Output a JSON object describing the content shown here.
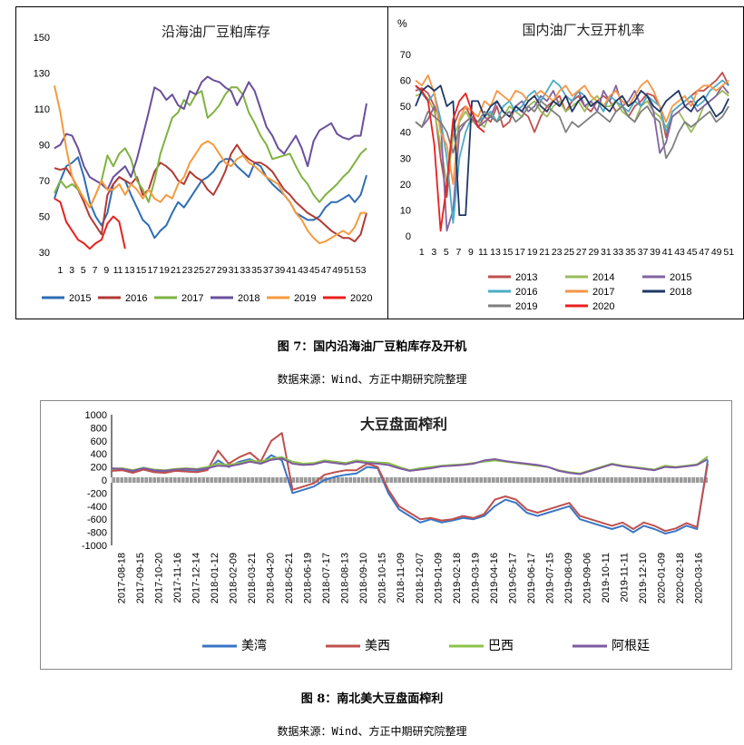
{
  "figure7": {
    "caption": "图 7：国内沿海油厂豆粕库存及开机",
    "source": "数据来源：Wind、方正中期研究院整理"
  },
  "figure8": {
    "caption": "图 8：南北美大豆盘面榨利",
    "source": "数据来源：Wind、方正中期研究院整理"
  },
  "colors": {
    "2015": "#2e6db4",
    "2016": "#b23a34",
    "2017": "#7fb241",
    "2018": "#6a4f9c",
    "2019": "#f59a3d",
    "2020": "#e8201e",
    "c2013": "#c0504d",
    "c2014": "#9bbb59",
    "c2015": "#8064a2",
    "c2016": "#4bacc6",
    "c2017": "#f79646",
    "c2018": "#1f3864",
    "c2019": "#7f7f7f",
    "c2020": "#e8201e",
    "us": "#3a75c4",
    "mx": "#c0504d",
    "br": "#8bc34a",
    "ar": "#7e5aa0"
  },
  "chart_data": [
    {
      "type": "line",
      "title": "沿海油厂豆粕库存",
      "x_ticks": [
        "1",
        "3",
        "5",
        "7",
        "9",
        "11",
        "13",
        "15",
        "17",
        "19",
        "21",
        "23",
        "25",
        "27",
        "29",
        "31",
        "33",
        "35",
        "37",
        "39",
        "41",
        "43",
        "45",
        "47",
        "49",
        "51",
        "53"
      ],
      "ylim": [
        30,
        150
      ],
      "y_ticks": [
        30,
        50,
        70,
        90,
        110,
        130,
        150
      ],
      "grid": false,
      "legend": "bottom",
      "series": [
        {
          "name": "2015",
          "color_key": "2015",
          "values": [
            60,
            70,
            78,
            80,
            83,
            72,
            58,
            50,
            45,
            52,
            68,
            72,
            70,
            62,
            55,
            48,
            45,
            38,
            42,
            45,
            52,
            58,
            55,
            60,
            65,
            70,
            72,
            75,
            80,
            82,
            82,
            78,
            75,
            72,
            80,
            78,
            72,
            68,
            65,
            62,
            58,
            52,
            50,
            48,
            48,
            50,
            55,
            58,
            58,
            60,
            62,
            58,
            62,
            73
          ]
        },
        {
          "name": "2016",
          "color_key": "2016",
          "values": [
            77,
            76,
            77,
            72,
            65,
            58,
            50,
            45,
            40,
            62,
            68,
            72,
            70,
            68,
            72,
            62,
            65,
            75,
            80,
            78,
            75,
            70,
            68,
            75,
            72,
            70,
            65,
            62,
            68,
            75,
            85,
            90,
            85,
            82,
            80,
            80,
            78,
            75,
            70,
            65,
            62,
            58,
            55,
            52,
            50,
            48,
            45,
            42,
            40,
            38,
            38,
            36,
            40,
            52
          ]
        },
        {
          "name": "2017",
          "color_key": "2017",
          "values": [
            63,
            70,
            66,
            68,
            65,
            60,
            55,
            62,
            70,
            84,
            78,
            85,
            88,
            82,
            70,
            65,
            58,
            70,
            85,
            95,
            105,
            108,
            115,
            112,
            118,
            120,
            105,
            108,
            112,
            118,
            122,
            122,
            118,
            108,
            102,
            95,
            90,
            82,
            83,
            84,
            85,
            78,
            72,
            68,
            62,
            58,
            62,
            65,
            68,
            72,
            75,
            80,
            85,
            88
          ]
        },
        {
          "name": "2018",
          "color_key": "2018",
          "values": [
            88,
            90,
            96,
            95,
            88,
            78,
            72,
            70,
            68,
            65,
            72,
            75,
            78,
            72,
            82,
            95,
            108,
            122,
            120,
            115,
            118,
            112,
            110,
            120,
            118,
            125,
            128,
            126,
            125,
            122,
            120,
            112,
            118,
            125,
            120,
            110,
            100,
            95,
            88,
            85,
            90,
            95,
            88,
            78,
            92,
            98,
            100,
            102,
            96,
            94,
            93,
            95,
            95,
            113
          ]
        },
        {
          "name": "2019",
          "color_key": "2019",
          "values": [
            123,
            108,
            88,
            72,
            66,
            60,
            55,
            62,
            70,
            65,
            65,
            68,
            62,
            68,
            65,
            60,
            65,
            60,
            58,
            62,
            60,
            68,
            72,
            80,
            85,
            90,
            92,
            90,
            85,
            80,
            78,
            82,
            84,
            80,
            78,
            75,
            72,
            70,
            68,
            62,
            58,
            52,
            48,
            42,
            38,
            35,
            36,
            38,
            40,
            42,
            40,
            44,
            52,
            52
          ]
        },
        {
          "name": "2020",
          "color_key": "2020",
          "values": [
            60,
            58,
            47,
            42,
            37,
            35,
            32,
            35,
            37,
            46,
            50,
            47,
            32
          ]
        }
      ]
    },
    {
      "type": "line",
      "title": "国内油厂大豆开机率",
      "ylabel": "%",
      "x_ticks": [
        "1",
        "3",
        "5",
        "7",
        "9",
        "11",
        "13",
        "15",
        "17",
        "19",
        "21",
        "23",
        "25",
        "27",
        "29",
        "31",
        "33",
        "35",
        "37",
        "39",
        "41",
        "43",
        "45",
        "47",
        "49",
        "51"
      ],
      "ylim": [
        0,
        70
      ],
      "y_ticks": [
        0,
        10,
        20,
        30,
        40,
        50,
        60,
        70
      ],
      "grid": false,
      "legend": "bottom",
      "series": [
        {
          "name": "2013",
          "color_key": "c2013",
          "values": [
            56,
            57,
            55,
            50,
            30,
            15,
            42,
            48,
            50,
            45,
            42,
            46,
            44,
            50,
            42,
            44,
            50,
            48,
            46,
            40,
            46,
            50,
            52,
            54,
            48,
            52,
            54,
            50,
            48,
            52,
            54,
            52,
            48,
            50,
            46,
            50,
            52,
            55,
            54,
            50,
            38,
            48,
            50,
            52,
            54,
            56,
            56,
            58,
            60,
            63,
            58
          ]
        },
        {
          "name": "2014",
          "color_key": "c2014",
          "values": [
            54,
            55,
            53,
            48,
            35,
            20,
            38,
            44,
            48,
            44,
            44,
            42,
            48,
            44,
            46,
            50,
            48,
            46,
            50,
            52,
            48,
            46,
            50,
            52,
            48,
            50,
            52,
            48,
            52,
            54,
            50,
            50,
            52,
            48,
            46,
            44,
            50,
            52,
            48,
            46,
            42,
            46,
            48,
            44,
            40,
            44,
            50,
            52,
            54,
            56,
            54
          ]
        },
        {
          "name": "2015",
          "color_key": "c2015",
          "values": [
            44,
            42,
            45,
            50,
            45,
            2,
            10,
            40,
            44,
            46,
            42,
            44,
            46,
            52,
            48,
            46,
            50,
            52,
            48,
            50,
            54,
            52,
            56,
            50,
            54,
            52,
            56,
            50,
            52,
            48,
            56,
            52,
            58,
            50,
            52,
            56,
            50,
            54,
            48,
            32,
            36,
            46,
            48,
            50,
            52,
            48,
            50,
            52,
            54,
            58,
            55
          ]
        },
        {
          "name": "2016",
          "color_key": "c2016",
          "values": [
            58,
            55,
            52,
            55,
            45,
            30,
            5,
            30,
            40,
            46,
            44,
            46,
            48,
            44,
            50,
            52,
            48,
            50,
            54,
            56,
            52,
            56,
            60,
            58,
            54,
            52,
            56,
            54,
            50,
            52,
            48,
            54,
            52,
            50,
            48,
            52,
            50,
            54,
            52,
            50,
            40,
            48,
            50,
            52,
            54,
            50,
            52,
            56,
            58,
            60,
            58
          ]
        },
        {
          "name": "2017",
          "color_key": "c2017",
          "values": [
            60,
            58,
            62,
            55,
            40,
            35,
            20,
            45,
            50,
            48,
            46,
            52,
            50,
            56,
            54,
            52,
            56,
            55,
            52,
            54,
            56,
            54,
            52,
            56,
            58,
            54,
            56,
            58,
            54,
            52,
            50,
            54,
            56,
            52,
            50,
            54,
            58,
            60,
            56,
            50,
            44,
            50,
            52,
            54,
            50,
            56,
            58,
            58,
            56,
            58,
            60
          ]
        },
        {
          "name": "2018",
          "color_key": "c2018",
          "values": [
            50,
            56,
            58,
            56,
            58,
            50,
            52,
            8,
            8,
            52,
            52,
            46,
            50,
            52,
            48,
            46,
            50,
            48,
            52,
            54,
            50,
            48,
            52,
            50,
            54,
            48,
            52,
            54,
            50,
            52,
            50,
            48,
            52,
            54,
            50,
            52,
            56,
            54,
            50,
            48,
            52,
            54,
            56,
            50,
            48,
            52,
            54,
            50,
            46,
            48,
            53
          ]
        },
        {
          "name": "2019",
          "color_key": "c2019",
          "values": [
            44,
            42,
            48,
            46,
            44,
            40,
            32,
            42,
            44,
            46,
            44,
            48,
            46,
            44,
            46,
            48,
            44,
            46,
            50,
            48,
            52,
            50,
            48,
            46,
            40,
            44,
            42,
            44,
            46,
            48,
            46,
            44,
            48,
            50,
            46,
            44,
            48,
            50,
            46,
            44,
            30,
            34,
            40,
            44,
            42,
            44,
            46,
            48,
            44,
            46,
            50
          ]
        },
        {
          "name": "2020",
          "color_key": "c2020",
          "values": [
            58,
            56,
            52,
            35,
            2,
            20,
            45,
            52,
            55,
            48,
            42,
            40
          ]
        }
      ]
    },
    {
      "type": "line",
      "title": "大豆盘面榨利",
      "x_ticks": [
        "2017-08-18",
        "2017-09-15",
        "2017-10-20",
        "2017-11-16",
        "2017-12-14",
        "2018-01-12",
        "2018-02-09",
        "2018-03-21",
        "2018-04-20",
        "2018-05-21",
        "2018-06-19",
        "2018-07-17",
        "2018-08-13",
        "2018-09-10",
        "2018-10-15",
        "2018-11-09",
        "2018-12-07",
        "2019-01-09",
        "2019-02-18",
        "2019-03-19",
        "2019-04-16",
        "2019-05-17",
        "2019-06-17",
        "2019-07-15",
        "2019-08-09",
        "2019-09-06",
        "2019-10-11",
        "2019-11-11",
        "2019-12-10",
        "2020-01-09",
        "2020-02-18",
        "2020-03-16"
      ],
      "ylim": [
        -1000,
        1000
      ],
      "y_ticks": [
        -1000,
        -800,
        -600,
        -400,
        -200,
        0,
        200,
        400,
        600,
        800,
        1000
      ],
      "grid": false,
      "legend": "bottom",
      "series": [
        {
          "name": "美湾",
          "color_key": "us",
          "values": [
            150,
            160,
            120,
            170,
            130,
            120,
            150,
            140,
            130,
            160,
            300,
            200,
            280,
            320,
            250,
            380,
            300,
            -200,
            -150,
            -100,
            0,
            50,
            80,
            100,
            200,
            180,
            -200,
            -450,
            -550,
            -650,
            -600,
            -650,
            -620,
            -580,
            -600,
            -550,
            -400,
            -300,
            -350,
            -500,
            -550,
            -500,
            -450,
            -400,
            -600,
            -650,
            -700,
            -750,
            -700,
            -800,
            -700,
            -750,
            -820,
            -780,
            -700,
            -750,
            300
          ]
        },
        {
          "name": "美西",
          "color_key": "mx",
          "values": [
            140,
            150,
            110,
            160,
            120,
            110,
            140,
            130,
            120,
            150,
            450,
            250,
            350,
            420,
            280,
            600,
            720,
            -150,
            -100,
            -50,
            80,
            120,
            150,
            150,
            250,
            200,
            -150,
            -400,
            -500,
            -600,
            -580,
            -620,
            -600,
            -550,
            -580,
            -520,
            -300,
            -250,
            -300,
            -450,
            -500,
            -450,
            -400,
            -350,
            -550,
            -600,
            -650,
            -700,
            -650,
            -750,
            -650,
            -700,
            -780,
            -740,
            -660,
            -720,
            250
          ]
        },
        {
          "name": "巴西",
          "color_key": "br",
          "values": [
            170,
            180,
            150,
            190,
            160,
            150,
            170,
            180,
            170,
            200,
            250,
            230,
            260,
            300,
            280,
            330,
            350,
            280,
            250,
            260,
            300,
            280,
            260,
            300,
            280,
            270,
            260,
            200,
            150,
            180,
            200,
            220,
            230,
            240,
            260,
            280,
            300,
            280,
            260,
            240,
            220,
            200,
            150,
            120,
            100,
            150,
            200,
            250,
            220,
            200,
            180,
            160,
            220,
            200,
            220,
            240,
            360
          ]
        },
        {
          "name": "阿根廷",
          "color_key": "ar",
          "values": [
            180,
            170,
            140,
            180,
            150,
            140,
            160,
            170,
            160,
            180,
            220,
            210,
            240,
            280,
            250,
            310,
            330,
            250,
            230,
            240,
            280,
            260,
            240,
            280,
            260,
            250,
            230,
            180,
            140,
            160,
            180,
            210,
            220,
            230,
            250,
            300,
            320,
            290,
            270,
            250,
            230,
            200,
            140,
            110,
            90,
            140,
            190,
            240,
            210,
            190,
            170,
            150,
            200,
            190,
            210,
            230,
            320
          ]
        }
      ]
    }
  ]
}
